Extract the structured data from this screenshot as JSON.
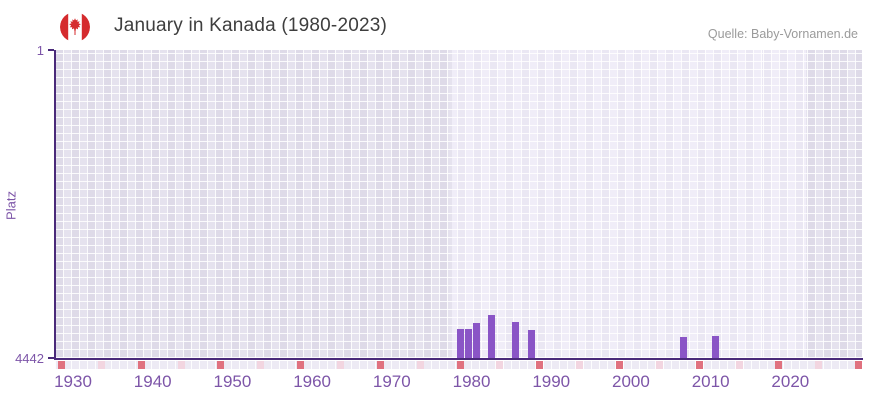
{
  "header": {
    "title": "January in Kanada (1980-2023)",
    "source": "Quelle: Baby-Vornamen.de",
    "flag_icon": "canada-flag-round"
  },
  "chart_data": {
    "type": "bar",
    "title": "January in Kanada (1980-2023)",
    "ylabel": "Platz",
    "xlabel": "",
    "grid": "checkered-lavender",
    "legend": "none",
    "y_axis": {
      "top_label": "1",
      "bottom_label": "4442",
      "min": 1,
      "max": 4442,
      "inverted": true
    },
    "x_axis": {
      "domain": [
        1927.74,
        2028.99
      ],
      "tick_years": [
        1930,
        1940,
        1950,
        1960,
        1970,
        1980,
        1990,
        2000,
        2010,
        2020
      ]
    },
    "bars": [
      {
        "year": 1978,
        "rank": 4025
      },
      {
        "year": 1979,
        "rank": 4025
      },
      {
        "year": 1980,
        "rank": 3940
      },
      {
        "year": 1982,
        "rank": 3820
      },
      {
        "year": 1985,
        "rank": 3920
      },
      {
        "year": 1987,
        "rank": 4040
      },
      {
        "year": 2006,
        "rank": 4140
      },
      {
        "year": 2010,
        "rank": 4125
      }
    ],
    "highlight_band_years": [
      1977.5,
      2022.0
    ],
    "bottom_marks": {
      "strong_years": [
        1928,
        1938,
        1948,
        1958,
        1968,
        1978,
        1988,
        1998,
        2008,
        2018,
        2028
      ],
      "light_years": [
        1933,
        1943,
        1953,
        1963,
        1973,
        1983,
        1993,
        2003,
        2013,
        2023
      ]
    },
    "colors": {
      "bar": "#8a55c6",
      "axis_line": "#4a2a7a",
      "tick_label": "#7d55a8",
      "plot_cell": "#e5e2ee",
      "plot_cell_highlight": "#f0edf8",
      "mark_strong": "#e0717f",
      "mark_light": "#f2d5e0",
      "title_text": "#3e3e3e",
      "source_text": "#9b9b9b",
      "flag_red": "#d52b2e"
    }
  }
}
